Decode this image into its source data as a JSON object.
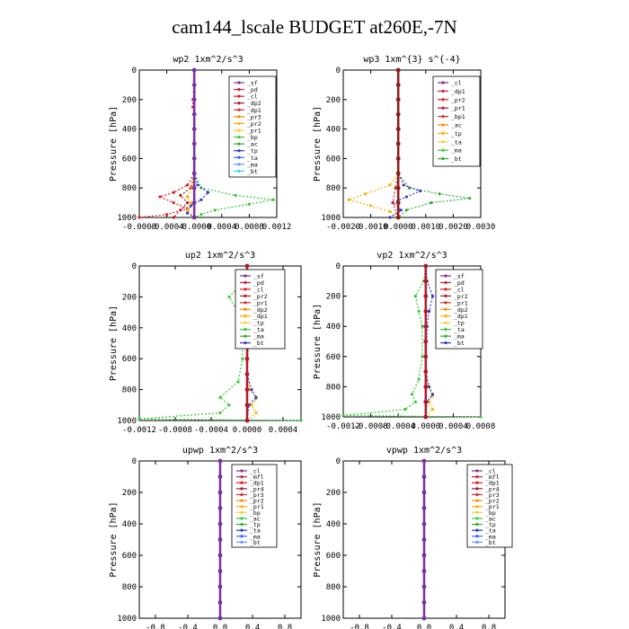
{
  "figure": {
    "title": "cam144_lscale  BUDGET at260E,-7N"
  },
  "chart_data": [
    {
      "type": "line",
      "title": "wp2   1xm^2/s^3",
      "ylabel": "Pressure [hPa]",
      "ylim": [
        1000,
        0
      ],
      "xlim": [
        -0.0008,
        0.0012
      ],
      "xticks": [
        -0.0008,
        -0.0004,
        0.0,
        0.0004,
        0.0008,
        0.0012
      ],
      "xtick_labels": [
        "-0.0008",
        "-0.0004",
        "-0.0000",
        "0.0004",
        "0.0008",
        "0.0012"
      ],
      "yticks": [
        0,
        200,
        400,
        600,
        800,
        1000
      ],
      "legend": [
        "_sf",
        "_pd",
        "_cl",
        "_dp2",
        "_dp1",
        "_pr3",
        "_pr2",
        "_pr1",
        "_bp",
        "_ac",
        "_tp",
        "_ta",
        "_ma",
        "_bt"
      ],
      "series": [
        {
          "name": "_dp1",
          "color": "#e41a1c",
          "y": [
            0,
            150,
            200,
            250,
            300,
            700,
            780,
            830,
            860,
            900,
            940,
            980,
            1000
          ],
          "x": [
            0,
            0,
            -2e-05,
            -2e-05,
            0,
            0,
            -0.0001,
            -0.0003,
            -0.0005,
            -0.0003,
            -0.0001,
            -0.0004,
            -0.0008
          ]
        },
        {
          "name": "_dp2",
          "color": "#b2182b",
          "y": [
            0,
            700,
            800,
            850,
            900,
            950,
            1000
          ],
          "x": [
            0,
            0,
            -5e-05,
            -0.0002,
            -0.0001,
            -0.0002,
            -0.0003
          ]
        },
        {
          "name": "_pr1",
          "color": "#33cc33",
          "y": [
            0,
            700,
            800,
            850,
            880,
            910,
            950,
            980,
            1000
          ],
          "x": [
            0,
            0,
            0.0001,
            0.0006,
            0.00115,
            0.0008,
            0.0003,
            0.0001,
            0
          ]
        },
        {
          "name": "_ac",
          "color": "#3333cc",
          "y": [
            0,
            700,
            780,
            830,
            880,
            920,
            970,
            1000
          ],
          "x": [
            0,
            0,
            5e-05,
            0.0002,
            0.0001,
            -5e-05,
            -0.0001,
            0
          ]
        },
        {
          "name": "_pr2",
          "color": "#ffb000",
          "y": [
            0,
            700,
            800,
            860,
            900,
            950,
            1000
          ],
          "x": [
            0,
            0,
            -3e-05,
            -0.0001,
            -5e-05,
            -0.0001,
            0
          ]
        },
        {
          "name": "_bt",
          "color": "#7b2fa0",
          "y": [
            0,
            100,
            200,
            300,
            400,
            500,
            600,
            700,
            800,
            900,
            1000
          ],
          "x": [
            0,
            0,
            0,
            0,
            0,
            0,
            0,
            0,
            0,
            0,
            0
          ]
        }
      ]
    },
    {
      "type": "line",
      "title": "wp3   1xm^{3} s^{-4}",
      "ylabel": "Pressure [hPa]",
      "ylim": [
        1000,
        0
      ],
      "xlim": [
        -0.002,
        0.003
      ],
      "xticks": [
        -0.002,
        -0.001,
        0.0,
        0.001,
        0.002,
        0.003
      ],
      "xtick_labels": [
        "-0.0020",
        "-0.0010",
        "0.0000",
        "0.0010",
        "0.0020",
        "0.0030"
      ],
      "yticks": [
        0,
        200,
        400,
        600,
        800,
        1000
      ],
      "legend": [
        "_cl",
        "_dp1",
        "_pr2",
        "_pr1",
        "_bp1",
        "_ac",
        "_tp",
        "_ta",
        "_ma",
        "_bt"
      ],
      "series": [
        {
          "name": "_pr1",
          "color": "#ffb000",
          "y": [
            0,
            700,
            780,
            840,
            880,
            920,
            960,
            1000
          ],
          "x": [
            0,
            0,
            -0.0003,
            -0.0012,
            -0.0018,
            -0.001,
            -0.0003,
            0
          ]
        },
        {
          "name": "_ac",
          "color": "#33aa33",
          "y": [
            0,
            700,
            800,
            840,
            870,
            900,
            950,
            1000
          ],
          "x": [
            0,
            0,
            0.0004,
            0.0015,
            0.0026,
            0.0012,
            0.0003,
            0
          ]
        },
        {
          "name": "_tp",
          "color": "#3333cc",
          "y": [
            0,
            700,
            780,
            820,
            860,
            900,
            950,
            1000
          ],
          "x": [
            0,
            0,
            0.0002,
            0.0008,
            0.0003,
            -0.0002,
            0.0001,
            -0.0003
          ]
        },
        {
          "name": "_dp1",
          "color": "#e41a1c",
          "y": [
            0,
            300,
            700,
            800,
            900,
            1000
          ],
          "x": [
            0,
            0,
            0,
            -0.0001,
            -0.0002,
            0
          ]
        },
        {
          "name": "_bt",
          "color": "#8b1a1a",
          "y": [
            0,
            100,
            200,
            300,
            400,
            500,
            600,
            700,
            800,
            900,
            1000
          ],
          "x": [
            0,
            0,
            0,
            0,
            0,
            0,
            0,
            0,
            0,
            0,
            0
          ]
        }
      ]
    },
    {
      "type": "line",
      "title": "up2   1xm^2/s^3",
      "ylabel": "Pressure [hPa]",
      "ylim": [
        1000,
        0
      ],
      "xlim": [
        -0.0012,
        0.0006
      ],
      "xticks": [
        -0.0012,
        -0.0008,
        -0.0004,
        0.0,
        0.0004
      ],
      "xtick_labels": [
        "-0.0012",
        "-0.0008",
        "-0.0004",
        "0.0000",
        "0.0004"
      ],
      "yticks": [
        0,
        200,
        400,
        600,
        800,
        1000
      ],
      "legend": [
        "_sf",
        "_pd",
        "_cl",
        "_pr2",
        "_pr1",
        "_dp2",
        "_dp1",
        "_tp",
        "_ta",
        "_ma",
        "_bt"
      ],
      "series": [
        {
          "name": "_pr1",
          "color": "#33cc33",
          "y": [
            0,
            100,
            200,
            300,
            400,
            600,
            750,
            850,
            900,
            950,
            990,
            1000
          ],
          "x": [
            0,
            -3e-05,
            -0.0002,
            -0.0001,
            -5e-05,
            -5e-05,
            -0.0001,
            -0.0003,
            -0.0002,
            -0.0003,
            -0.0012,
            0.0006
          ]
        },
        {
          "name": "_pr2",
          "color": "#ffb000",
          "y": [
            0,
            700,
            800,
            860,
            900,
            950,
            1000
          ],
          "x": [
            0,
            0,
            3e-05,
            0.0001,
            5e-05,
            0.0001,
            0
          ]
        },
        {
          "name": "_tp",
          "color": "#3333cc",
          "y": [
            0,
            100,
            200,
            300,
            400,
            700,
            800,
            850,
            900,
            1000
          ],
          "x": [
            0,
            2e-05,
            0.0001,
            5e-05,
            2e-05,
            0,
            5e-05,
            0.0001,
            2e-05,
            0
          ]
        },
        {
          "name": "_bt",
          "color": "#b2182b",
          "y": [
            0,
            100,
            200,
            300,
            400,
            500,
            600,
            700,
            800,
            900,
            1000
          ],
          "x": [
            0,
            0,
            0,
            0,
            0,
            0,
            0,
            0,
            0,
            0,
            0
          ]
        }
      ]
    },
    {
      "type": "line",
      "title": "vp2   1xm^2/s^3",
      "ylabel": "Pressure [hPa]",
      "ylim": [
        1000,
        0
      ],
      "xlim": [
        -0.0012,
        0.0008
      ],
      "xticks": [
        -0.0012,
        -0.0008,
        -0.0004,
        0.0,
        0.0004,
        0.0008
      ],
      "xtick_labels": [
        "-0.0012",
        "-0.0008",
        "-0.0004",
        "0.0000",
        "0.0004",
        "0.0008"
      ],
      "yticks": [
        0,
        200,
        400,
        600,
        800,
        1000
      ],
      "legend": [
        "_sf",
        "_pd",
        "_cl",
        "_pr2",
        "_pr1",
        "_dp2",
        "_dp1",
        "_tp",
        "_ta",
        "_ma",
        "_bt"
      ],
      "series": [
        {
          "name": "_pr1",
          "color": "#33cc33",
          "y": [
            0,
            100,
            200,
            300,
            400,
            600,
            750,
            850,
            900,
            950,
            990,
            1000
          ],
          "x": [
            0,
            -3e-05,
            -0.00015,
            -0.0001,
            -5e-05,
            -5e-05,
            -0.0001,
            -0.0002,
            -0.00015,
            -0.0003,
            -0.0012,
            0.0008
          ]
        },
        {
          "name": "_pr2",
          "color": "#ffb000",
          "y": [
            0,
            700,
            800,
            860,
            900,
            950,
            1000
          ],
          "x": [
            0,
            0,
            3e-05,
            0.0001,
            5e-05,
            0.0001,
            0
          ]
        },
        {
          "name": "_tp",
          "color": "#3333cc",
          "y": [
            0,
            100,
            200,
            300,
            400,
            700,
            800,
            850,
            900,
            1000
          ],
          "x": [
            0,
            2e-05,
            0.0001,
            5e-05,
            2e-05,
            0,
            5e-05,
            0.0001,
            2e-05,
            0
          ]
        },
        {
          "name": "_bt",
          "color": "#b2182b",
          "y": [
            0,
            100,
            200,
            300,
            400,
            500,
            600,
            700,
            800,
            900,
            1000
          ],
          "x": [
            0,
            0,
            0,
            0,
            0,
            0,
            0,
            0,
            0,
            0,
            0
          ]
        }
      ]
    },
    {
      "type": "line",
      "title": "upwp   1xm^2/s^3",
      "ylabel": "Pressure [hPa]",
      "ylim": [
        1000,
        0
      ],
      "xlim": [
        -1.0,
        1.0
      ],
      "xticks": [
        -0.8,
        -0.4,
        0.0,
        0.4,
        0.8
      ],
      "xtick_labels": [
        "-0.8",
        "-0.4",
        "0.0",
        "0.4",
        "0.8"
      ],
      "yticks": [
        0,
        200,
        400,
        600,
        800,
        1000
      ],
      "legend": [
        "_cl",
        "_mfl",
        "_dp1",
        "_pr4",
        "_pr3",
        "_pr2",
        "_pr1",
        "_bp",
        "_ac",
        "_tp",
        "_ta",
        "_ma",
        "_bt"
      ],
      "series": [
        {
          "name": "_bt",
          "color": "#7b2fa0",
          "y": [
            0,
            100,
            200,
            300,
            400,
            500,
            600,
            700,
            800,
            900,
            1000
          ],
          "x": [
            0,
            0,
            0,
            0,
            0,
            0,
            0,
            0,
            0,
            0,
            0
          ]
        }
      ]
    },
    {
      "type": "line",
      "title": "vpwp   1xm^2/s^3",
      "ylabel": "Pressure [hPa]",
      "ylim": [
        1000,
        0
      ],
      "xlim": [
        -1.0,
        1.0
      ],
      "xticks": [
        -0.8,
        -0.4,
        0.0,
        0.4,
        0.8
      ],
      "xtick_labels": [
        "-0.8",
        "-0.4",
        "0.0",
        "0.4",
        "0.8"
      ],
      "yticks": [
        0,
        200,
        400,
        600,
        800,
        1000
      ],
      "legend": [
        "_cl",
        "_mfl",
        "_dp1",
        "_pr4",
        "_pr3",
        "_pr2",
        "_pr1",
        "_bp",
        "_ac",
        "_tp",
        "_ta",
        "_ma",
        "_bt"
      ],
      "series": [
        {
          "name": "_bt",
          "color": "#7b2fa0",
          "y": [
            0,
            100,
            200,
            300,
            400,
            500,
            600,
            700,
            800,
            900,
            1000
          ],
          "x": [
            0,
            0,
            0,
            0,
            0,
            0,
            0,
            0,
            0,
            0,
            0
          ]
        }
      ]
    }
  ],
  "legend_colors": [
    "#7b2fa0",
    "#cc2244",
    "#e41a1c",
    "#b2182b",
    "#cc3333",
    "#ff8800",
    "#ffb000",
    "#ffcc33",
    "#33cc33",
    "#33aa33",
    "#3333cc",
    "#3366ff",
    "#6699ff",
    "#33ccff"
  ]
}
